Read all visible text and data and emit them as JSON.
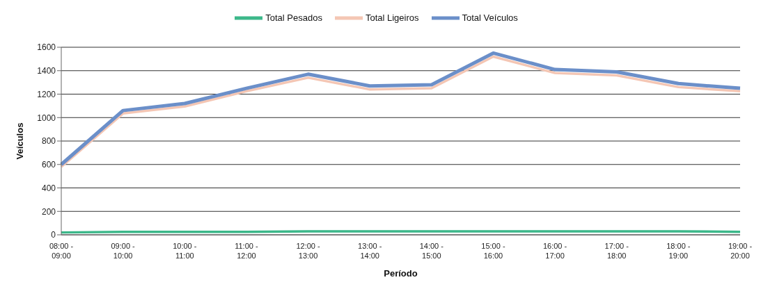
{
  "chart_data": {
    "type": "line",
    "xlabel": "Período",
    "ylabel": "Veículos",
    "categories": [
      "08:00 - 09:00",
      "09:00 - 10:00",
      "10:00 - 11:00",
      "11:00 - 12:00",
      "12:00 - 13:00",
      "13:00 - 14:00",
      "14:00 - 15:00",
      "15:00 - 16:00",
      "16:00 - 17:00",
      "17:00 - 18:00",
      "18:00 - 19:00",
      "19:00 - 20:00"
    ],
    "series": [
      {
        "name": "Total Pesados",
        "color": "#3cb88a",
        "values": [
          20,
          25,
          25,
          25,
          30,
          30,
          30,
          30,
          30,
          30,
          30,
          25
        ]
      },
      {
        "name": "Total Ligeiros",
        "color": "#f4c6b4",
        "values": [
          580,
          1035,
          1095,
          1225,
          1340,
          1240,
          1250,
          1520,
          1380,
          1360,
          1260,
          1225
        ]
      },
      {
        "name": "Total Veículos",
        "color": "#6b8fc9",
        "values": [
          600,
          1060,
          1120,
          1250,
          1370,
          1270,
          1280,
          1550,
          1410,
          1390,
          1290,
          1250
        ]
      }
    ],
    "ylim": [
      0,
      1600
    ],
    "yticks": [
      0,
      200,
      400,
      600,
      800,
      1000,
      1200,
      1400,
      1600
    ],
    "grid": "y",
    "legend": "top",
    "marker": "none",
    "line_style": "solid"
  }
}
